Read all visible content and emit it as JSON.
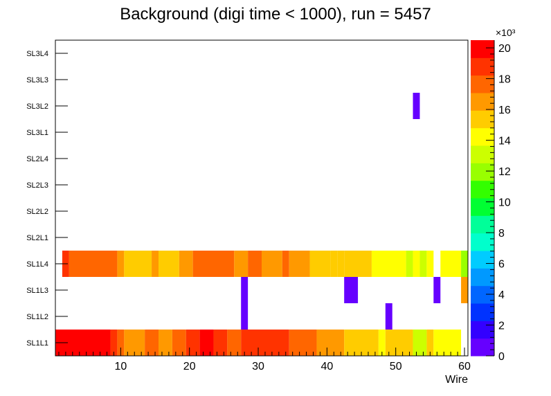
{
  "chart_data": {
    "type": "heatmap",
    "title": "Background (digi time < 1000), run = 5457",
    "xlabel": "Wire",
    "ylabel": "",
    "xlim": [
      0.5,
      60.5
    ],
    "x_ticks": [
      10,
      20,
      30,
      40,
      50,
      60
    ],
    "layers": [
      "SL1L1",
      "SL1L2",
      "SL1L3",
      "SL1L4",
      "SL2L1",
      "SL2L2",
      "SL2L3",
      "SL2L4",
      "SL3L1",
      "SL3L2",
      "SL3L3",
      "SL3L4"
    ],
    "z_range": [
      0,
      20500
    ],
    "z_multiplier_label": "×10³",
    "z_ticks": [
      0,
      2,
      4,
      6,
      8,
      10,
      12,
      14,
      16,
      18,
      20
    ],
    "palette": [
      "#6600ff",
      "#3300ff",
      "#0033ff",
      "#0066ff",
      "#0099ff",
      "#00ccff",
      "#00ffcc",
      "#00ff99",
      "#00ff33",
      "#33ff00",
      "#99ff00",
      "#ccff00",
      "#ffff00",
      "#ffcc00",
      "#ff9900",
      "#ff6600",
      "#ff3300",
      "#ff0000"
    ],
    "series": [
      {
        "name": "SL1L1",
        "segments": [
          {
            "x_from": 1,
            "x_to": 8,
            "value": 20000
          },
          {
            "x_from": 9,
            "x_to": 9,
            "value": 19000
          },
          {
            "x_from": 10,
            "x_to": 10,
            "value": 17500
          },
          {
            "x_from": 11,
            "x_to": 13,
            "value": 16500
          },
          {
            "x_from": 14,
            "x_to": 15,
            "value": 17500
          },
          {
            "x_from": 16,
            "x_to": 17,
            "value": 16500
          },
          {
            "x_from": 18,
            "x_to": 19,
            "value": 17500
          },
          {
            "x_from": 20,
            "x_to": 21,
            "value": 19000
          },
          {
            "x_from": 22,
            "x_to": 23,
            "value": 20000
          },
          {
            "x_from": 24,
            "x_to": 25,
            "value": 19000
          },
          {
            "x_from": 26,
            "x_to": 27,
            "value": 17500
          },
          {
            "x_from": 28,
            "x_to": 34,
            "value": 19000
          },
          {
            "x_from": 35,
            "x_to": 38,
            "value": 17500
          },
          {
            "x_from": 39,
            "x_to": 42,
            "value": 16500
          },
          {
            "x_from": 43,
            "x_to": 47,
            "value": 15500
          },
          {
            "x_from": 48,
            "x_to": 48,
            "value": 14500
          },
          {
            "x_from": 49,
            "x_to": 52,
            "value": 15500
          },
          {
            "x_from": 53,
            "x_to": 54,
            "value": 13500
          },
          {
            "x_from": 55,
            "x_to": 55,
            "value": 15000
          },
          {
            "x_from": 56,
            "x_to": 59,
            "value": 14000
          }
        ]
      },
      {
        "name": "SL1L2",
        "segments": [
          {
            "x_from": 28,
            "x_to": 28,
            "value": 500
          },
          {
            "x_from": 49,
            "x_to": 49,
            "value": 500
          }
        ]
      },
      {
        "name": "SL1L3",
        "segments": [
          {
            "x_from": 28,
            "x_to": 28,
            "value": 500
          },
          {
            "x_from": 43,
            "x_to": 44,
            "value": 500
          },
          {
            "x_from": 56,
            "x_to": 56,
            "value": 500
          },
          {
            "x_from": 60,
            "x_to": 60,
            "value": 16500
          }
        ]
      },
      {
        "name": "SL1L4",
        "segments": [
          {
            "x_from": 2,
            "x_to": 2,
            "value": 18500
          },
          {
            "x_from": 3,
            "x_to": 9,
            "value": 17500
          },
          {
            "x_from": 10,
            "x_to": 10,
            "value": 16500
          },
          {
            "x_from": 11,
            "x_to": 14,
            "value": 15500
          },
          {
            "x_from": 15,
            "x_to": 15,
            "value": 16500
          },
          {
            "x_from": 16,
            "x_to": 18,
            "value": 15500
          },
          {
            "x_from": 19,
            "x_to": 20,
            "value": 16500
          },
          {
            "x_from": 21,
            "x_to": 26,
            "value": 17500
          },
          {
            "x_from": 27,
            "x_to": 28,
            "value": 16500
          },
          {
            "x_from": 29,
            "x_to": 30,
            "value": 17500
          },
          {
            "x_from": 31,
            "x_to": 33,
            "value": 16500
          },
          {
            "x_from": 34,
            "x_to": 34,
            "value": 17500
          },
          {
            "x_from": 35,
            "x_to": 37,
            "value": 16500
          },
          {
            "x_from": 38,
            "x_to": 40,
            "value": 15500
          },
          {
            "x_from": 41,
            "x_to": 41,
            "value": 15000
          },
          {
            "x_from": 42,
            "x_to": 42,
            "value": 15500
          },
          {
            "x_from": 43,
            "x_to": 46,
            "value": 15000
          },
          {
            "x_from": 47,
            "x_to": 51,
            "value": 14000
          },
          {
            "x_from": 52,
            "x_to": 52,
            "value": 13500
          },
          {
            "x_from": 53,
            "x_to": 53,
            "value": 14000
          },
          {
            "x_from": 54,
            "x_to": 54,
            "value": 13500
          },
          {
            "x_from": 55,
            "x_to": 55,
            "value": 14500
          },
          {
            "x_from": 57,
            "x_to": 59,
            "value": 14000
          },
          {
            "x_from": 60,
            "x_to": 61,
            "value": 12500
          }
        ]
      },
      {
        "name": "SL3L2",
        "segments": [
          {
            "x_from": 53,
            "x_to": 53,
            "value": 500
          }
        ]
      }
    ]
  }
}
